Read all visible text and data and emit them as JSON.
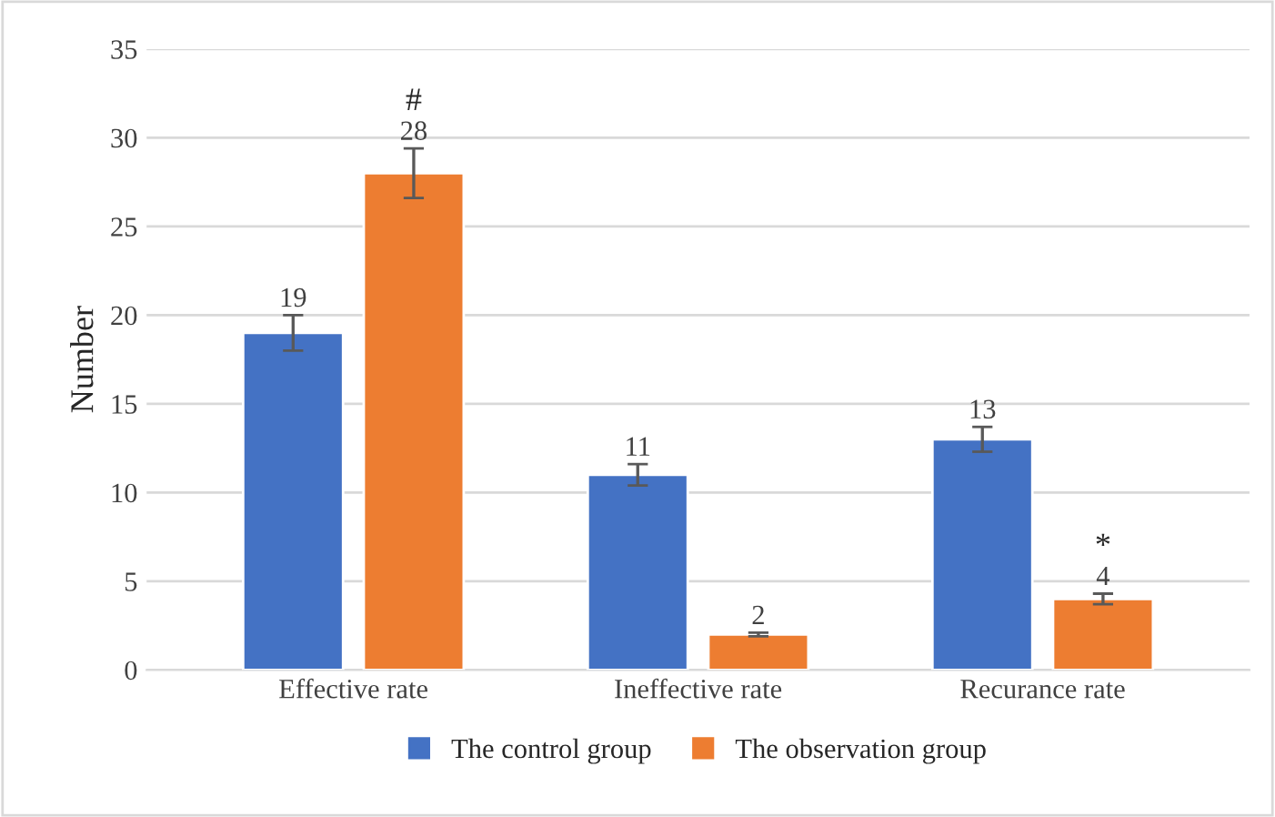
{
  "chart_data": {
    "type": "bar",
    "ylabel": "Number",
    "categories": [
      "Effective rate",
      "Ineffective rate",
      "Recurance rate"
    ],
    "series": [
      {
        "name": "The control group",
        "color": "#4472c4",
        "values": [
          19,
          11,
          13
        ],
        "errors": [
          1,
          0.6,
          0.7
        ]
      },
      {
        "name": "The observation group",
        "color": "#ed7d31",
        "values": [
          28,
          2,
          4
        ],
        "errors": [
          1.4,
          0.1,
          0.3
        ]
      }
    ],
    "ylim": [
      0,
      35
    ],
    "yticks": [
      0,
      5,
      10,
      15,
      20,
      25,
      30,
      35
    ],
    "grid": "y",
    "legend": "bottom",
    "data_labels": true,
    "annotations": [
      "#",
      "*"
    ]
  }
}
